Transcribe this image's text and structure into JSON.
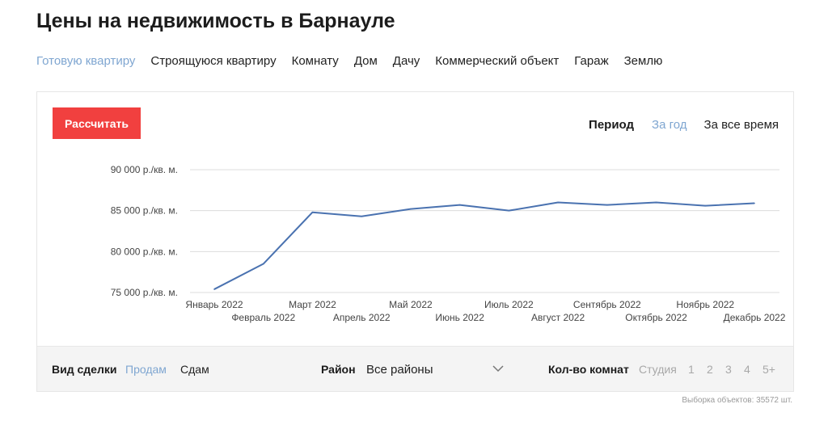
{
  "page": {
    "title": "Цены на недвижимость в Барнауле"
  },
  "tabs": [
    {
      "label": "Готовую квартиру",
      "active": true
    },
    {
      "label": "Строящуюся квартиру",
      "active": false
    },
    {
      "label": "Комнату",
      "active": false
    },
    {
      "label": "Дом",
      "active": false
    },
    {
      "label": "Дачу",
      "active": false
    },
    {
      "label": "Коммерческий объект",
      "active": false
    },
    {
      "label": "Гараж",
      "active": false
    },
    {
      "label": "Землю",
      "active": false
    }
  ],
  "calc_button": {
    "label": "Рассчитать",
    "color": "#f1403f"
  },
  "period": {
    "label": "Период",
    "options": [
      {
        "label": "За год",
        "active": true
      },
      {
        "label": "За все время",
        "active": false
      }
    ]
  },
  "colors": {
    "accent": "#7fa6d1",
    "line": "#4a72b0",
    "grid": "#dcdcdc",
    "button": "#f1403f"
  },
  "chart_data": {
    "type": "line",
    "title": "",
    "xlabel": "",
    "ylabel": "",
    "ylim": [
      75000,
      90000
    ],
    "yticks": [
      75000,
      80000,
      85000,
      90000
    ],
    "ytick_labels": [
      "75 000 р./кв. м.",
      "80 000 р./кв. м.",
      "85 000 р./кв. м.",
      "90 000 р./кв. м."
    ],
    "grid": true,
    "categories": [
      "Январь 2022",
      "Февраль 2022",
      "Март 2022",
      "Апрель 2022",
      "Май 2022",
      "Июнь 2022",
      "Июль 2022",
      "Август 2022",
      "Сентябрь 2022",
      "Октябрь 2022",
      "Ноябрь 2022",
      "Декабрь 2022"
    ],
    "series": [
      {
        "values": [
          75400,
          78500,
          84800,
          84300,
          85200,
          85700,
          85000,
          86000,
          85700,
          86000,
          85600,
          85900
        ]
      }
    ]
  },
  "filters": {
    "deal": {
      "label": "Вид сделки",
      "options": [
        {
          "label": "Продам",
          "active": true
        },
        {
          "label": "Сдам",
          "active": false
        }
      ]
    },
    "district": {
      "label": "Район",
      "value": "Все районы",
      "icon": "chevron-down-icon"
    },
    "rooms": {
      "label": "Кол-во комнат",
      "options": [
        "Студия",
        "1",
        "2",
        "3",
        "4",
        "5+"
      ]
    }
  },
  "footnote": "Выборка объектов: 35572 шт."
}
